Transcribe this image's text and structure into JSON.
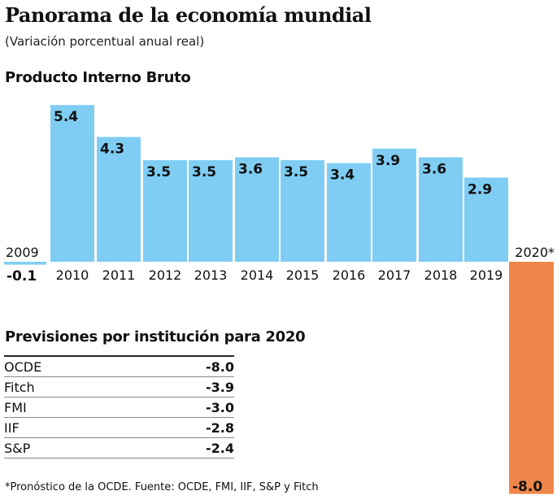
{
  "title": "Panorama de la economía mundial",
  "subtitle": "(Variación porcentual anual real)",
  "chart_data": {
    "type": "bar",
    "title": "Producto Interno Bruto",
    "categories": [
      "2009",
      "2010",
      "2011",
      "2012",
      "2013",
      "2014",
      "2015",
      "2016",
      "2017",
      "2018",
      "2019",
      "2020*"
    ],
    "values": [
      -0.1,
      5.4,
      4.3,
      3.5,
      3.5,
      3.6,
      3.5,
      3.4,
      3.9,
      3.6,
      2.9,
      -8.0
    ],
    "value_labels": [
      "-0.1",
      "5.4",
      "4.3",
      "3.5",
      "3.5",
      "3.6",
      "3.5",
      "3.4",
      "3.9",
      "3.6",
      "2.9",
      "-8.0"
    ],
    "colors": {
      "historical": "#7fcdf3",
      "forecast": "#f0874a"
    },
    "grid": false
  },
  "table": {
    "title": "Previsiones por institución para 2020",
    "rows": [
      {
        "name": "OCDE",
        "value": "-8.0"
      },
      {
        "name": "Fitch",
        "value": "-3.9"
      },
      {
        "name": "FMI",
        "value": "-3.0"
      },
      {
        "name": "IIF",
        "value": "-2.8"
      },
      {
        "name": "S&P",
        "value": "-2.4"
      }
    ]
  },
  "note": "*Pronóstico de la OCDE. Fuente: OCDE, FMI, IIF, S&P y Fitch"
}
